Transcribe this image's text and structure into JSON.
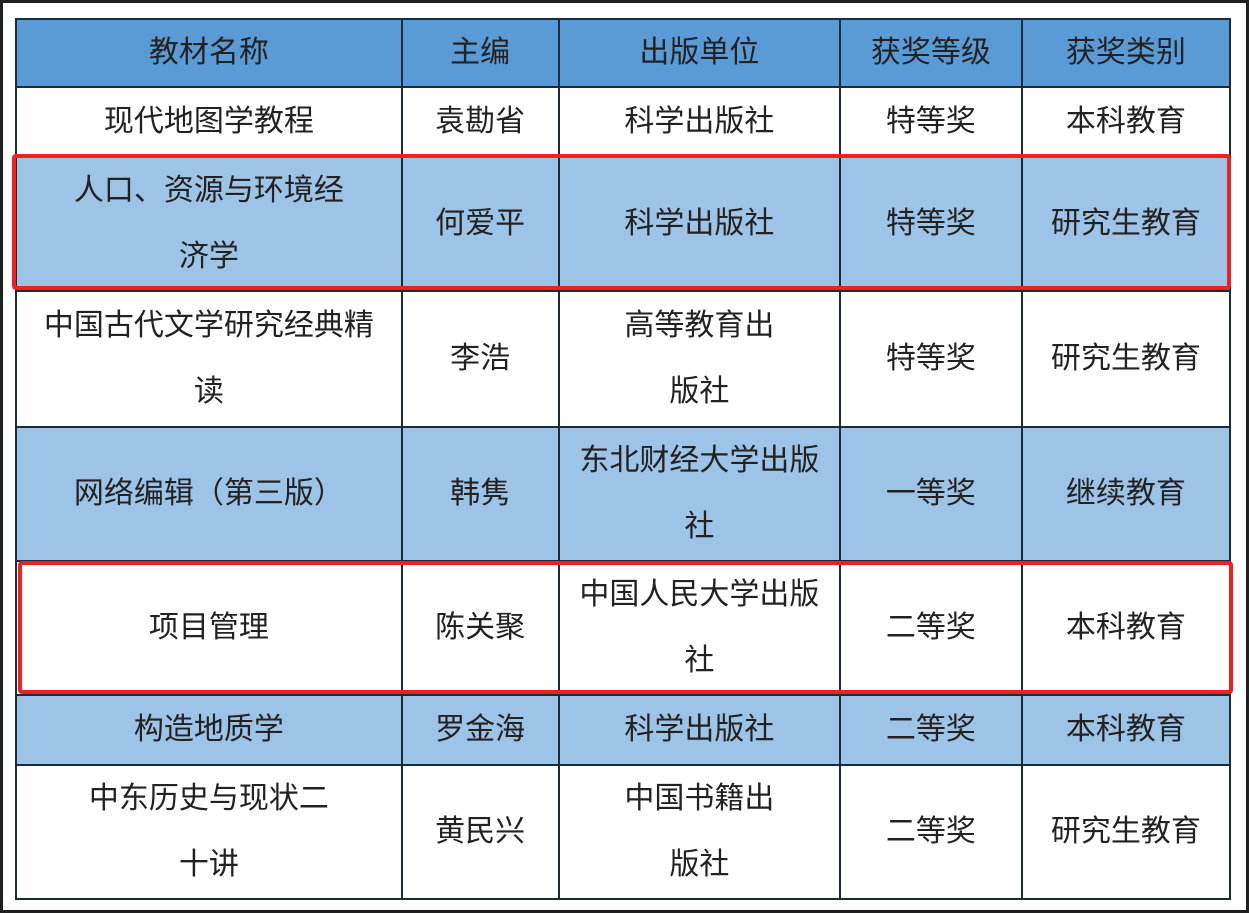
{
  "table": {
    "headers": [
      "教材名称",
      "主编",
      "出版单位",
      "获奖等级",
      "获奖类别"
    ],
    "rows": [
      {
        "name": "现代地图学教程",
        "editor": "袁勘省",
        "publisher": "科学出版社",
        "level": "特等奖",
        "category": "本科教育",
        "fill": "white",
        "highlighted": false
      },
      {
        "name": "人口、资源与环境经济学",
        "editor": "何爱平",
        "publisher": "科学出版社",
        "level": "特等奖",
        "category": "研究生教育",
        "fill": "blue",
        "highlighted": true
      },
      {
        "name": "中国古代文学研究经典精读",
        "editor": "李浩",
        "publisher": "高等教育出版社",
        "level": "特等奖",
        "category": "研究生教育",
        "fill": "white",
        "highlighted": false
      },
      {
        "name": "网络编辑（第三版）",
        "editor": "韩隽",
        "publisher": "东北财经大学出版社",
        "level": "一等奖",
        "category": "继续教育",
        "fill": "blue",
        "highlighted": false
      },
      {
        "name": "项目管理",
        "editor": "陈关聚",
        "publisher": "中国人民大学出版社",
        "level": "二等奖",
        "category": "本科教育",
        "fill": "white",
        "highlighted": true
      },
      {
        "name": "构造地质学",
        "editor": "罗金海",
        "publisher": "科学出版社",
        "level": "二等奖",
        "category": "本科教育",
        "fill": "blue",
        "highlighted": false
      },
      {
        "name": "中东历史与现状二十讲",
        "editor": "黄民兴",
        "publisher": "中国书籍出版社",
        "level": "二等奖",
        "category": "研究生教育",
        "fill": "white",
        "highlighted": false
      }
    ]
  },
  "colors": {
    "header": "#5b9bd5",
    "row_blue": "#9dc3e6",
    "highlight": "#f02020"
  }
}
